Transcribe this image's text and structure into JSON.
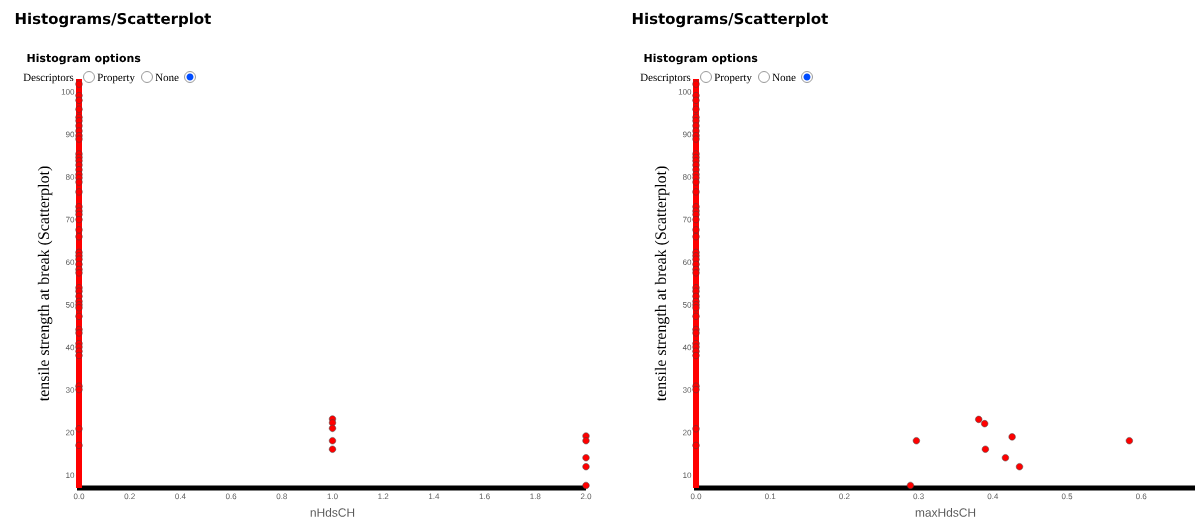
{
  "chart_data": [
    {
      "type": "scatter",
      "title": "Histograms/Scatterplot",
      "subtitle": "Histogram options",
      "annotations": [
        "Descriptors",
        "Property",
        "None"
      ],
      "xlabel": "nHdsCH",
      "ylabel": "tensile strength at break (Scatterplot)",
      "color": "#ff0000",
      "marker": "circle",
      "x": [
        0,
        0,
        0,
        0,
        0,
        0,
        0,
        0,
        0,
        0,
        0,
        0,
        0,
        0,
        0,
        0,
        0,
        0,
        0,
        0,
        0,
        0,
        0,
        0,
        0,
        0,
        0,
        0,
        0,
        0,
        0,
        0,
        0,
        0,
        0,
        0,
        0,
        0,
        0,
        0,
        0,
        0,
        0,
        0,
        0,
        0,
        0,
        0,
        1,
        1,
        1,
        1,
        1,
        2,
        2,
        2,
        2,
        2
      ],
      "values": [
        101.8,
        99.1,
        98.0,
        95.9,
        94.0,
        93.2,
        92.0,
        90.8,
        89.7,
        88.9,
        85.4,
        84.6,
        83.8,
        82.8,
        81.7,
        80.6,
        79.8,
        78.8,
        76.5,
        73.0,
        72.0,
        71.2,
        70.0,
        67.6,
        66.0,
        62.3,
        61.5,
        60.7,
        59.5,
        58.3,
        57.5,
        54.0,
        53.2,
        52.0,
        50.8,
        50.0,
        49.3,
        47.3,
        44.2,
        43.4,
        40.9,
        40.1,
        39.1,
        38.1,
        30.9,
        30.1,
        20.9,
        17.0,
        23.2,
        22.3,
        21.0,
        18.1,
        16.1,
        19.2,
        18.1,
        14.1,
        12.0,
        7.6
      ],
      "xlim": [
        0,
        2
      ],
      "ylim": [
        7,
        103
      ],
      "xticks": [
        {
          "value": 0,
          "label": "0.0"
        },
        {
          "value": 0.2,
          "label": "0.2"
        },
        {
          "value": 0.4,
          "label": "0.4"
        },
        {
          "value": 0.6,
          "label": "0.6"
        },
        {
          "value": 0.8,
          "label": "0.8"
        },
        {
          "value": 1,
          "label": "1.0"
        },
        {
          "value": 1.2,
          "label": "1.2"
        },
        {
          "value": 1.4,
          "label": "1.4"
        },
        {
          "value": 1.6,
          "label": "1.6"
        },
        {
          "value": 1.8,
          "label": "1.8"
        },
        {
          "value": 2,
          "label": "2.0"
        }
      ],
      "yticks": [
        10,
        20,
        30,
        40,
        50,
        60,
        70,
        80,
        90,
        100
      ]
    },
    {
      "type": "scatter",
      "title": "Histograms/Scatterplot",
      "subtitle": "Histogram options",
      "annotations": [
        "Descriptors",
        "Property",
        "None"
      ],
      "xlabel": "maxHdsCH",
      "ylabel": "tensile strength at break (Scatterplot)",
      "color": "#ff0000",
      "marker": "circle",
      "x": [
        0,
        0,
        0,
        0,
        0,
        0,
        0,
        0,
        0,
        0,
        0,
        0,
        0,
        0,
        0,
        0,
        0,
        0,
        0,
        0,
        0,
        0,
        0,
        0,
        0,
        0,
        0,
        0,
        0,
        0,
        0,
        0,
        0,
        0,
        0,
        0,
        0,
        0,
        0,
        0,
        0,
        0,
        0,
        0,
        0,
        0,
        0,
        0,
        0.297,
        0.289,
        0.381,
        0.389,
        0.426,
        0.39,
        0.417,
        0.436,
        0.584
      ],
      "values": [
        101.8,
        99.1,
        98.0,
        95.9,
        94.0,
        93.2,
        92.0,
        90.8,
        89.7,
        88.9,
        85.4,
        84.6,
        83.8,
        82.8,
        81.7,
        80.6,
        79.8,
        78.8,
        76.5,
        73.0,
        72.0,
        71.2,
        70.0,
        67.6,
        66.0,
        62.3,
        61.5,
        60.7,
        59.5,
        58.3,
        57.5,
        54.0,
        53.2,
        52.0,
        50.8,
        50.0,
        49.3,
        47.3,
        44.2,
        43.4,
        40.9,
        40.1,
        39.1,
        38.1,
        30.9,
        30.1,
        20.9,
        17.0,
        18.1,
        7.6,
        23.1,
        22.1,
        19.0,
        16.1,
        14.1,
        12.0,
        18.1
      ],
      "xlim": [
        0,
        0.6725
      ],
      "ylim": [
        7,
        103
      ],
      "xticks": [
        {
          "value": 0,
          "label": "0.0"
        },
        {
          "value": 0.1,
          "label": "0.1"
        },
        {
          "value": 0.2,
          "label": "0.2"
        },
        {
          "value": 0.3,
          "label": "0.3"
        },
        {
          "value": 0.4,
          "label": "0.4"
        },
        {
          "value": 0.5,
          "label": "0.5"
        },
        {
          "value": 0.6,
          "label": "0.6"
        }
      ],
      "yticks": [
        10,
        20,
        30,
        40,
        50,
        60,
        70,
        80,
        90,
        100
      ]
    }
  ]
}
